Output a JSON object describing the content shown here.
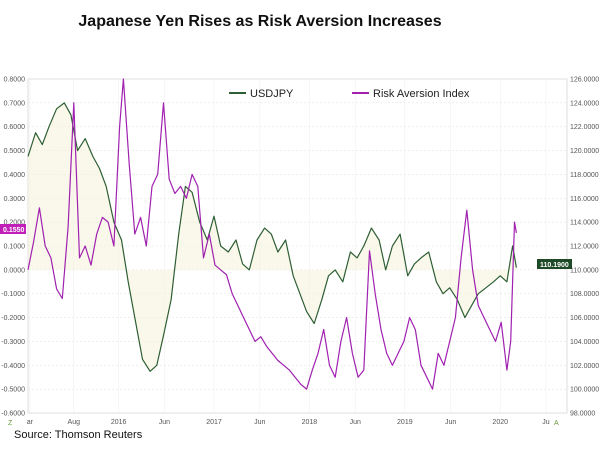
{
  "chart_data": {
    "type": "line",
    "title": "Japanese Yen Rises as Risk Aversion Increases",
    "source": "Source: Thomson Reuters",
    "legend": {
      "placement": "top-center"
    },
    "left_axis": {
      "min": -0.6,
      "max": 0.8,
      "ticks": [
        "0.8000",
        "0.7000",
        "0.6000",
        "0.5000",
        "0.4000",
        "0.3000",
        "0.2000",
        "0.1000",
        "0.0000",
        "-0.1000",
        "-0.2000",
        "-0.3000",
        "-0.4000",
        "-0.5000",
        "-0.6000"
      ]
    },
    "right_axis": {
      "min": 98,
      "max": 126,
      "ticks": [
        "126.0000",
        "124.0000",
        "122.0000",
        "120.0000",
        "118.0000",
        "116.0000",
        "114.0000",
        "112.0000",
        "110.0000",
        "108.0000",
        "106.0000",
        "104.0000",
        "102.0000",
        "100.0000",
        "98.0000"
      ]
    },
    "x_ticks": [
      {
        "label": "ar",
        "t": 0.02
      },
      {
        "label": "Aug",
        "t": 0.48
      },
      {
        "label": "2016",
        "t": 0.95
      },
      {
        "label": "Jun",
        "t": 1.43
      },
      {
        "label": "2017",
        "t": 1.95
      },
      {
        "label": "Jun",
        "t": 2.43
      },
      {
        "label": "2018",
        "t": 2.95
      },
      {
        "label": "Jun",
        "t": 3.43
      },
      {
        "label": "2019",
        "t": 3.95
      },
      {
        "label": "Jun",
        "t": 4.43
      },
      {
        "label": "2020",
        "t": 4.95
      },
      {
        "label": "Ju",
        "t": 5.43
      }
    ],
    "corner_labels": {
      "left": "Z",
      "right": "A"
    },
    "series": [
      {
        "name": "USDJPY",
        "axis": "right",
        "color": "#2e5e34",
        "current_label": "110.1900",
        "t": [
          0.0,
          0.08,
          0.15,
          0.22,
          0.3,
          0.38,
          0.45,
          0.52,
          0.6,
          0.68,
          0.75,
          0.82,
          0.9,
          0.98,
          1.05,
          1.12,
          1.2,
          1.28,
          1.35,
          1.42,
          1.5,
          1.58,
          1.65,
          1.72,
          1.8,
          1.88,
          1.95,
          2.02,
          2.1,
          2.18,
          2.25,
          2.32,
          2.4,
          2.48,
          2.55,
          2.62,
          2.7,
          2.78,
          2.85,
          2.92,
          3.0,
          3.08,
          3.15,
          3.22,
          3.3,
          3.38,
          3.45,
          3.52,
          3.6,
          3.68,
          3.75,
          3.82,
          3.9,
          3.98,
          4.05,
          4.12,
          4.2,
          4.28,
          4.35,
          4.42,
          4.5,
          4.58,
          4.65,
          4.72,
          4.8,
          4.88,
          4.95,
          5.02,
          5.08,
          5.12
        ],
        "values": [
          119.5,
          121.5,
          120.5,
          122.0,
          123.5,
          124.0,
          123.0,
          120.0,
          121.0,
          119.5,
          118.5,
          117.0,
          114.0,
          112.5,
          109.0,
          106.0,
          102.5,
          101.5,
          102.0,
          104.5,
          107.5,
          113.0,
          117.0,
          116.5,
          114.0,
          112.5,
          114.5,
          112.0,
          111.5,
          112.5,
          110.5,
          110.0,
          112.5,
          113.5,
          113.0,
          111.5,
          112.5,
          109.5,
          108.0,
          106.5,
          105.5,
          107.5,
          109.5,
          110.0,
          109.0,
          111.5,
          111.0,
          112.0,
          113.5,
          112.5,
          110.0,
          112.0,
          113.0,
          109.5,
          110.5,
          111.0,
          111.5,
          109.0,
          108.0,
          108.5,
          107.5,
          106.0,
          107.0,
          108.0,
          108.5,
          109.0,
          109.5,
          109.0,
          112.0,
          110.19
        ]
      },
      {
        "name": "Risk Aversion Index",
        "axis": "left",
        "color": "#a020b0",
        "current_label": "0.1550",
        "t": [
          0.0,
          0.06,
          0.12,
          0.18,
          0.24,
          0.3,
          0.36,
          0.42,
          0.48,
          0.54,
          0.6,
          0.66,
          0.72,
          0.78,
          0.84,
          0.9,
          0.96,
          1.0,
          1.06,
          1.12,
          1.18,
          1.24,
          1.3,
          1.36,
          1.42,
          1.48,
          1.54,
          1.6,
          1.66,
          1.72,
          1.78,
          1.84,
          1.9,
          1.96,
          2.02,
          2.08,
          2.14,
          2.2,
          2.26,
          2.32,
          2.38,
          2.44,
          2.5,
          2.56,
          2.62,
          2.68,
          2.74,
          2.8,
          2.86,
          2.92,
          2.98,
          3.04,
          3.1,
          3.16,
          3.22,
          3.28,
          3.34,
          3.4,
          3.46,
          3.52,
          3.58,
          3.64,
          3.7,
          3.76,
          3.82,
          3.88,
          3.94,
          4.0,
          4.06,
          4.12,
          4.18,
          4.24,
          4.3,
          4.36,
          4.42,
          4.48,
          4.54,
          4.6,
          4.66,
          4.72,
          4.78,
          4.84,
          4.9,
          4.96,
          5.02,
          5.06,
          5.1,
          5.12
        ],
        "values": [
          0.0,
          0.12,
          0.26,
          0.1,
          0.05,
          -0.08,
          -0.12,
          0.18,
          0.7,
          0.05,
          0.1,
          0.02,
          0.15,
          0.22,
          0.2,
          0.1,
          0.6,
          0.8,
          0.45,
          0.15,
          0.22,
          0.1,
          0.35,
          0.4,
          0.7,
          0.38,
          0.32,
          0.35,
          0.3,
          0.4,
          0.35,
          0.05,
          0.15,
          0.02,
          0.0,
          -0.02,
          -0.1,
          -0.15,
          -0.2,
          -0.25,
          -0.3,
          -0.28,
          -0.32,
          -0.35,
          -0.38,
          -0.4,
          -0.42,
          -0.45,
          -0.48,
          -0.5,
          -0.42,
          -0.35,
          -0.25,
          -0.4,
          -0.45,
          -0.3,
          -0.2,
          -0.35,
          -0.45,
          -0.42,
          0.08,
          -0.1,
          -0.25,
          -0.35,
          -0.4,
          -0.35,
          -0.3,
          -0.2,
          -0.25,
          -0.4,
          -0.45,
          -0.5,
          -0.35,
          -0.4,
          -0.3,
          -0.2,
          0.05,
          0.25,
          0.0,
          -0.15,
          -0.2,
          -0.25,
          -0.3,
          -0.22,
          -0.42,
          -0.3,
          0.2,
          0.155
        ]
      }
    ]
  }
}
